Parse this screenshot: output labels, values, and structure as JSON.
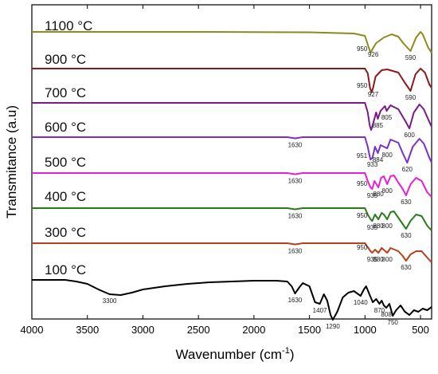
{
  "chart_data": {
    "type": "line",
    "title": "",
    "xlabel": "Wavenumber (cm",
    "xlabel_sup": "-1",
    "xlabel_tail": ")",
    "ylabel": "Transmitance (a.u)",
    "xlim": [
      4000,
      400
    ],
    "x_reversed": true,
    "x_ticks": [
      4000,
      3500,
      3000,
      2500,
      2000,
      1500,
      1000,
      500
    ],
    "x_tick_labels": [
      "4000",
      "3500",
      "3000",
      "2500",
      "2000",
      "1500",
      "1000",
      "500"
    ],
    "y_ticks": false,
    "legend": "none",
    "series": [
      {
        "name": "1100 °C",
        "color": "#8c8a1e",
        "baseline": 0,
        "points": [
          [
            4000,
            0
          ],
          [
            2500,
            0
          ],
          [
            1500,
            0.5
          ],
          [
            1100,
            2
          ],
          [
            1000,
            5
          ],
          [
            970,
            18
          ],
          [
            950,
            26
          ],
          [
            926,
            20
          ],
          [
            900,
            14
          ],
          [
            830,
            7
          ],
          [
            760,
            3
          ],
          [
            700,
            6
          ],
          [
            650,
            15
          ],
          [
            590,
            24
          ],
          [
            540,
            7
          ],
          [
            500,
            0
          ],
          [
            480,
            3
          ],
          [
            430,
            20
          ],
          [
            400,
            26
          ]
        ],
        "annotations": [
          {
            "x": 950,
            "text": "950",
            "side": "left"
          },
          {
            "x": 926,
            "text": "926"
          },
          {
            "x": 590,
            "text": "590"
          }
        ]
      },
      {
        "name": "900 °C",
        "color": "#8b1a1a",
        "baseline": 0,
        "points": [
          [
            4000,
            0
          ],
          [
            1000,
            0
          ],
          [
            975,
            6
          ],
          [
            955,
            24
          ],
          [
            940,
            30
          ],
          [
            927,
            24
          ],
          [
            905,
            10
          ],
          [
            850,
            2
          ],
          [
            800,
            1
          ],
          [
            700,
            5
          ],
          [
            640,
            18
          ],
          [
            590,
            28
          ],
          [
            545,
            7
          ],
          [
            500,
            0
          ],
          [
            460,
            5
          ],
          [
            420,
            20
          ],
          [
            400,
            24
          ]
        ],
        "annotations": [
          {
            "x": 950,
            "text": "950",
            "side": "left"
          },
          {
            "x": 927,
            "text": "927"
          },
          {
            "x": 590,
            "text": "590"
          }
        ]
      },
      {
        "name": "700 °C",
        "color": "#7a1a8a",
        "baseline": 0,
        "points": [
          [
            4000,
            0
          ],
          [
            1000,
            0
          ],
          [
            975,
            12
          ],
          [
            958,
            28
          ],
          [
            945,
            34
          ],
          [
            935,
            30
          ],
          [
            900,
            12
          ],
          [
            885,
            20
          ],
          [
            860,
            10
          ],
          [
            820,
            4
          ],
          [
            805,
            10
          ],
          [
            770,
            3
          ],
          [
            700,
            8
          ],
          [
            640,
            22
          ],
          [
            600,
            32
          ],
          [
            560,
            12
          ],
          [
            510,
            2
          ],
          [
            470,
            8
          ],
          [
            420,
            24
          ],
          [
            400,
            30
          ]
        ],
        "annotations": [
          {
            "x": 885,
            "text": "885"
          },
          {
            "x": 805,
            "text": "805"
          },
          {
            "x": 600,
            "text": "600"
          }
        ]
      },
      {
        "name": "600 °C",
        "color": "#7b2fc9",
        "baseline": 0,
        "points": [
          [
            4000,
            0
          ],
          [
            1700,
            0
          ],
          [
            1630,
            1.5
          ],
          [
            1560,
            0
          ],
          [
            1000,
            0
          ],
          [
            975,
            12
          ],
          [
            958,
            24
          ],
          [
            951,
            28
          ],
          [
            933,
            26
          ],
          [
            910,
            12
          ],
          [
            884,
            20
          ],
          [
            860,
            10
          ],
          [
            800,
            14
          ],
          [
            770,
            3
          ],
          [
            700,
            7
          ],
          [
            660,
            20
          ],
          [
            620,
            32
          ],
          [
            570,
            12
          ],
          [
            510,
            2
          ],
          [
            470,
            8
          ],
          [
            420,
            26
          ],
          [
            400,
            32
          ]
        ],
        "annotations": [
          {
            "x": 1630,
            "text": "1630"
          },
          {
            "x": 951,
            "text": "951",
            "side": "left"
          },
          {
            "x": 933,
            "text": "933"
          },
          {
            "x": 884,
            "text": "884"
          },
          {
            "x": 800,
            "text": "800"
          },
          {
            "x": 620,
            "text": "620"
          }
        ]
      },
      {
        "name": "500 °C",
        "color": "#e81fd8",
        "baseline": 0,
        "points": [
          [
            4000,
            0
          ],
          [
            1700,
            0
          ],
          [
            1630,
            1.5
          ],
          [
            1560,
            0
          ],
          [
            1000,
            0
          ],
          [
            975,
            10
          ],
          [
            951,
            18
          ],
          [
            935,
            20
          ],
          [
            915,
            10
          ],
          [
            880,
            18
          ],
          [
            855,
            6
          ],
          [
            830,
            4
          ],
          [
            800,
            14
          ],
          [
            770,
            4
          ],
          [
            740,
            3
          ],
          [
            700,
            12
          ],
          [
            660,
            20
          ],
          [
            630,
            28
          ],
          [
            590,
            14
          ],
          [
            540,
            6
          ],
          [
            490,
            10
          ],
          [
            440,
            24
          ],
          [
            400,
            30
          ]
        ],
        "annotations": [
          {
            "x": 1630,
            "text": "1630"
          },
          {
            "x": 950,
            "text": "950",
            "side": "left"
          },
          {
            "x": 935,
            "text": "935"
          },
          {
            "x": 880,
            "text": "880"
          },
          {
            "x": 800,
            "text": "800"
          },
          {
            "x": 630,
            "text": "630"
          }
        ]
      },
      {
        "name": "400 °C",
        "color": "#2a7a1a",
        "baseline": 0,
        "points": [
          [
            4000,
            0
          ],
          [
            1700,
            0
          ],
          [
            1630,
            1.5
          ],
          [
            1560,
            0
          ],
          [
            1000,
            0
          ],
          [
            975,
            8
          ],
          [
            950,
            14
          ],
          [
            935,
            16
          ],
          [
            910,
            8
          ],
          [
            880,
            14
          ],
          [
            850,
            6
          ],
          [
            830,
            8
          ],
          [
            800,
            14
          ],
          [
            770,
            5
          ],
          [
            740,
            4
          ],
          [
            700,
            12
          ],
          [
            660,
            20
          ],
          [
            630,
            26
          ],
          [
            590,
            16
          ],
          [
            540,
            8
          ],
          [
            490,
            10
          ],
          [
            440,
            22
          ],
          [
            400,
            28
          ]
        ],
        "annotations": [
          {
            "x": 1630,
            "text": "1630"
          },
          {
            "x": 950,
            "text": "950",
            "side": "left"
          },
          {
            "x": 935,
            "text": "935"
          },
          {
            "x": 880,
            "text": "880"
          },
          {
            "x": 800,
            "text": "800"
          },
          {
            "x": 630,
            "text": "630"
          }
        ]
      },
      {
        "name": "300 °C",
        "color": "#b8401a",
        "baseline": 0,
        "points": [
          [
            4000,
            0
          ],
          [
            1700,
            0
          ],
          [
            1630,
            1.5
          ],
          [
            1560,
            0
          ],
          [
            1000,
            0
          ],
          [
            975,
            5
          ],
          [
            950,
            10
          ],
          [
            935,
            12
          ],
          [
            910,
            8
          ],
          [
            880,
            12
          ],
          [
            850,
            6
          ],
          [
            800,
            12
          ],
          [
            770,
            6
          ],
          [
            700,
            10
          ],
          [
            660,
            16
          ],
          [
            630,
            22
          ],
          [
            590,
            14
          ],
          [
            540,
            10
          ],
          [
            490,
            10
          ],
          [
            440,
            18
          ],
          [
            400,
            24
          ]
        ],
        "annotations": [
          {
            "x": 1630,
            "text": "1630"
          },
          {
            "x": 950,
            "text": "950",
            "side": "left"
          },
          {
            "x": 935,
            "text": "935"
          },
          {
            "x": 880,
            "text": "880"
          },
          {
            "x": 800,
            "text": "800"
          },
          {
            "x": 630,
            "text": "630"
          }
        ]
      },
      {
        "name": "100 °C",
        "color": "#000000",
        "baseline": 0,
        "points": [
          [
            4000,
            0
          ],
          [
            3700,
            0
          ],
          [
            3600,
            2
          ],
          [
            3500,
            5
          ],
          [
            3400,
            12
          ],
          [
            3300,
            18
          ],
          [
            3200,
            19
          ],
          [
            3100,
            16
          ],
          [
            3000,
            12
          ],
          [
            2800,
            8
          ],
          [
            2600,
            5
          ],
          [
            2400,
            3
          ],
          [
            2200,
            2
          ],
          [
            2000,
            1
          ],
          [
            1800,
            1
          ],
          [
            1700,
            2
          ],
          [
            1660,
            8
          ],
          [
            1630,
            17
          ],
          [
            1590,
            9
          ],
          [
            1560,
            4
          ],
          [
            1500,
            8
          ],
          [
            1450,
            28
          ],
          [
            1407,
            30
          ],
          [
            1370,
            18
          ],
          [
            1340,
            26
          ],
          [
            1310,
            44
          ],
          [
            1290,
            50
          ],
          [
            1250,
            40
          ],
          [
            1200,
            22
          ],
          [
            1150,
            16
          ],
          [
            1100,
            14
          ],
          [
            1060,
            18
          ],
          [
            1040,
            20
          ],
          [
            1010,
            12
          ],
          [
            990,
            8
          ],
          [
            960,
            18
          ],
          [
            930,
            28
          ],
          [
            900,
            24
          ],
          [
            870,
            30
          ],
          [
            850,
            26
          ],
          [
            830,
            32
          ],
          [
            808,
            35
          ],
          [
            780,
            30
          ],
          [
            760,
            40
          ],
          [
            750,
            45
          ],
          [
            720,
            38
          ],
          [
            680,
            32
          ],
          [
            640,
            40
          ],
          [
            600,
            44
          ],
          [
            560,
            38
          ],
          [
            520,
            40
          ],
          [
            480,
            36
          ],
          [
            440,
            38
          ],
          [
            400,
            34
          ]
        ],
        "annotations": [
          {
            "x": 3300,
            "text": "3300"
          },
          {
            "x": 1630,
            "text": "1630"
          },
          {
            "x": 1407,
            "text": "1407"
          },
          {
            "x": 1290,
            "text": "1290"
          },
          {
            "x": 1040,
            "text": "1040"
          },
          {
            "x": 870,
            "text": "870"
          },
          {
            "x": 808,
            "text": "808"
          },
          {
            "x": 750,
            "text": "750"
          }
        ]
      }
    ]
  }
}
